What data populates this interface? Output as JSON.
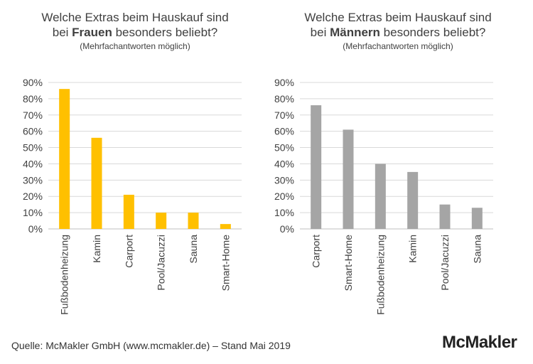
{
  "chart_data": [
    {
      "type": "bar",
      "title_line1": "Welche Extras beim Hauskauf sind",
      "title_line2_pre": "bei ",
      "title_line2_bold": "Frauen",
      "title_line2_post": " besonders beliebt?",
      "subtitle": "(Mehrfachantworten möglich)",
      "categories": [
        "Fußbodenheizung",
        "Kamin",
        "Carport",
        "Pool/Jacuzzi",
        "Sauna",
        "Smart-Home"
      ],
      "values": [
        86,
        56,
        21,
        10,
        10,
        3
      ],
      "ylim": [
        0,
        90
      ],
      "yticks": [
        "0%",
        "10%",
        "20%",
        "30%",
        "40%",
        "50%",
        "60%",
        "70%",
        "80%",
        "90%"
      ],
      "color": "#FFC000",
      "grid": true
    },
    {
      "type": "bar",
      "title_line1": "Welche Extras beim Hauskauf sind",
      "title_line2_pre": "bei ",
      "title_line2_bold": "Männern",
      "title_line2_post": " besonders beliebt?",
      "subtitle": "(Mehrfachantworten möglich)",
      "categories": [
        "Carport",
        "Smart-Home",
        "Fußbodenheizung",
        "Kamin",
        "Pool/Jacuzzi",
        "Sauna"
      ],
      "values": [
        76,
        61,
        40,
        35,
        15,
        13
      ],
      "ylim": [
        0,
        90
      ],
      "yticks": [
        "0%",
        "10%",
        "20%",
        "30%",
        "40%",
        "50%",
        "60%",
        "70%",
        "80%",
        "90%"
      ],
      "color": "#A5A5A5",
      "grid": true
    }
  ],
  "footer": {
    "source": "Quelle: McMakler GmbH (www.mcmakler.de) – Stand Mai 2019",
    "logo": "McMakler"
  }
}
